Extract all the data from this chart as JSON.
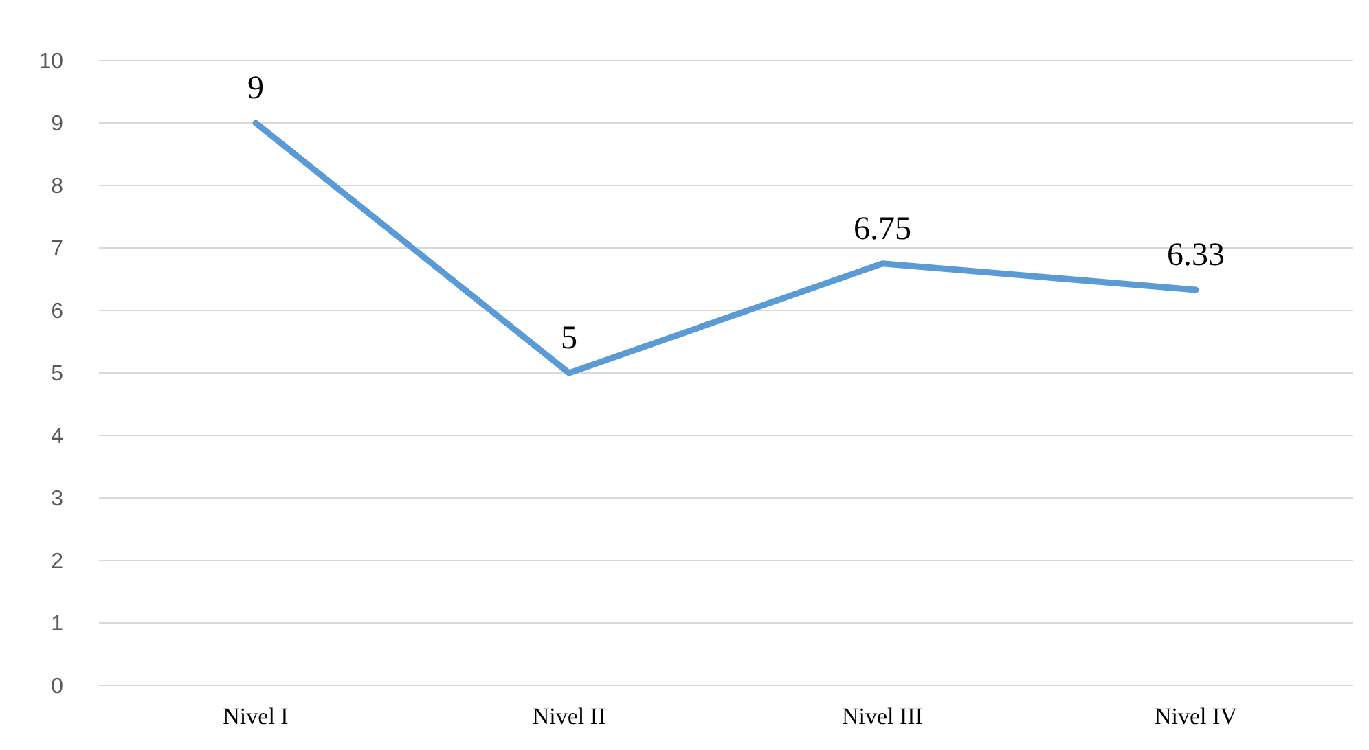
{
  "chart_data": {
    "type": "line",
    "categories": [
      "Nivel I",
      "Nivel II",
      "Nivel III",
      "Nivel IV"
    ],
    "series": [
      {
        "color": "#5b9bd5",
        "values": [
          9,
          5,
          6.75,
          6.33
        ]
      }
    ],
    "ylim": [
      0,
      10
    ],
    "yticks": [
      0,
      1,
      2,
      3,
      4,
      5,
      6,
      7,
      8,
      9,
      10
    ],
    "grid": "y",
    "marker": "none",
    "line_style": "solid",
    "data_labels": true
  }
}
